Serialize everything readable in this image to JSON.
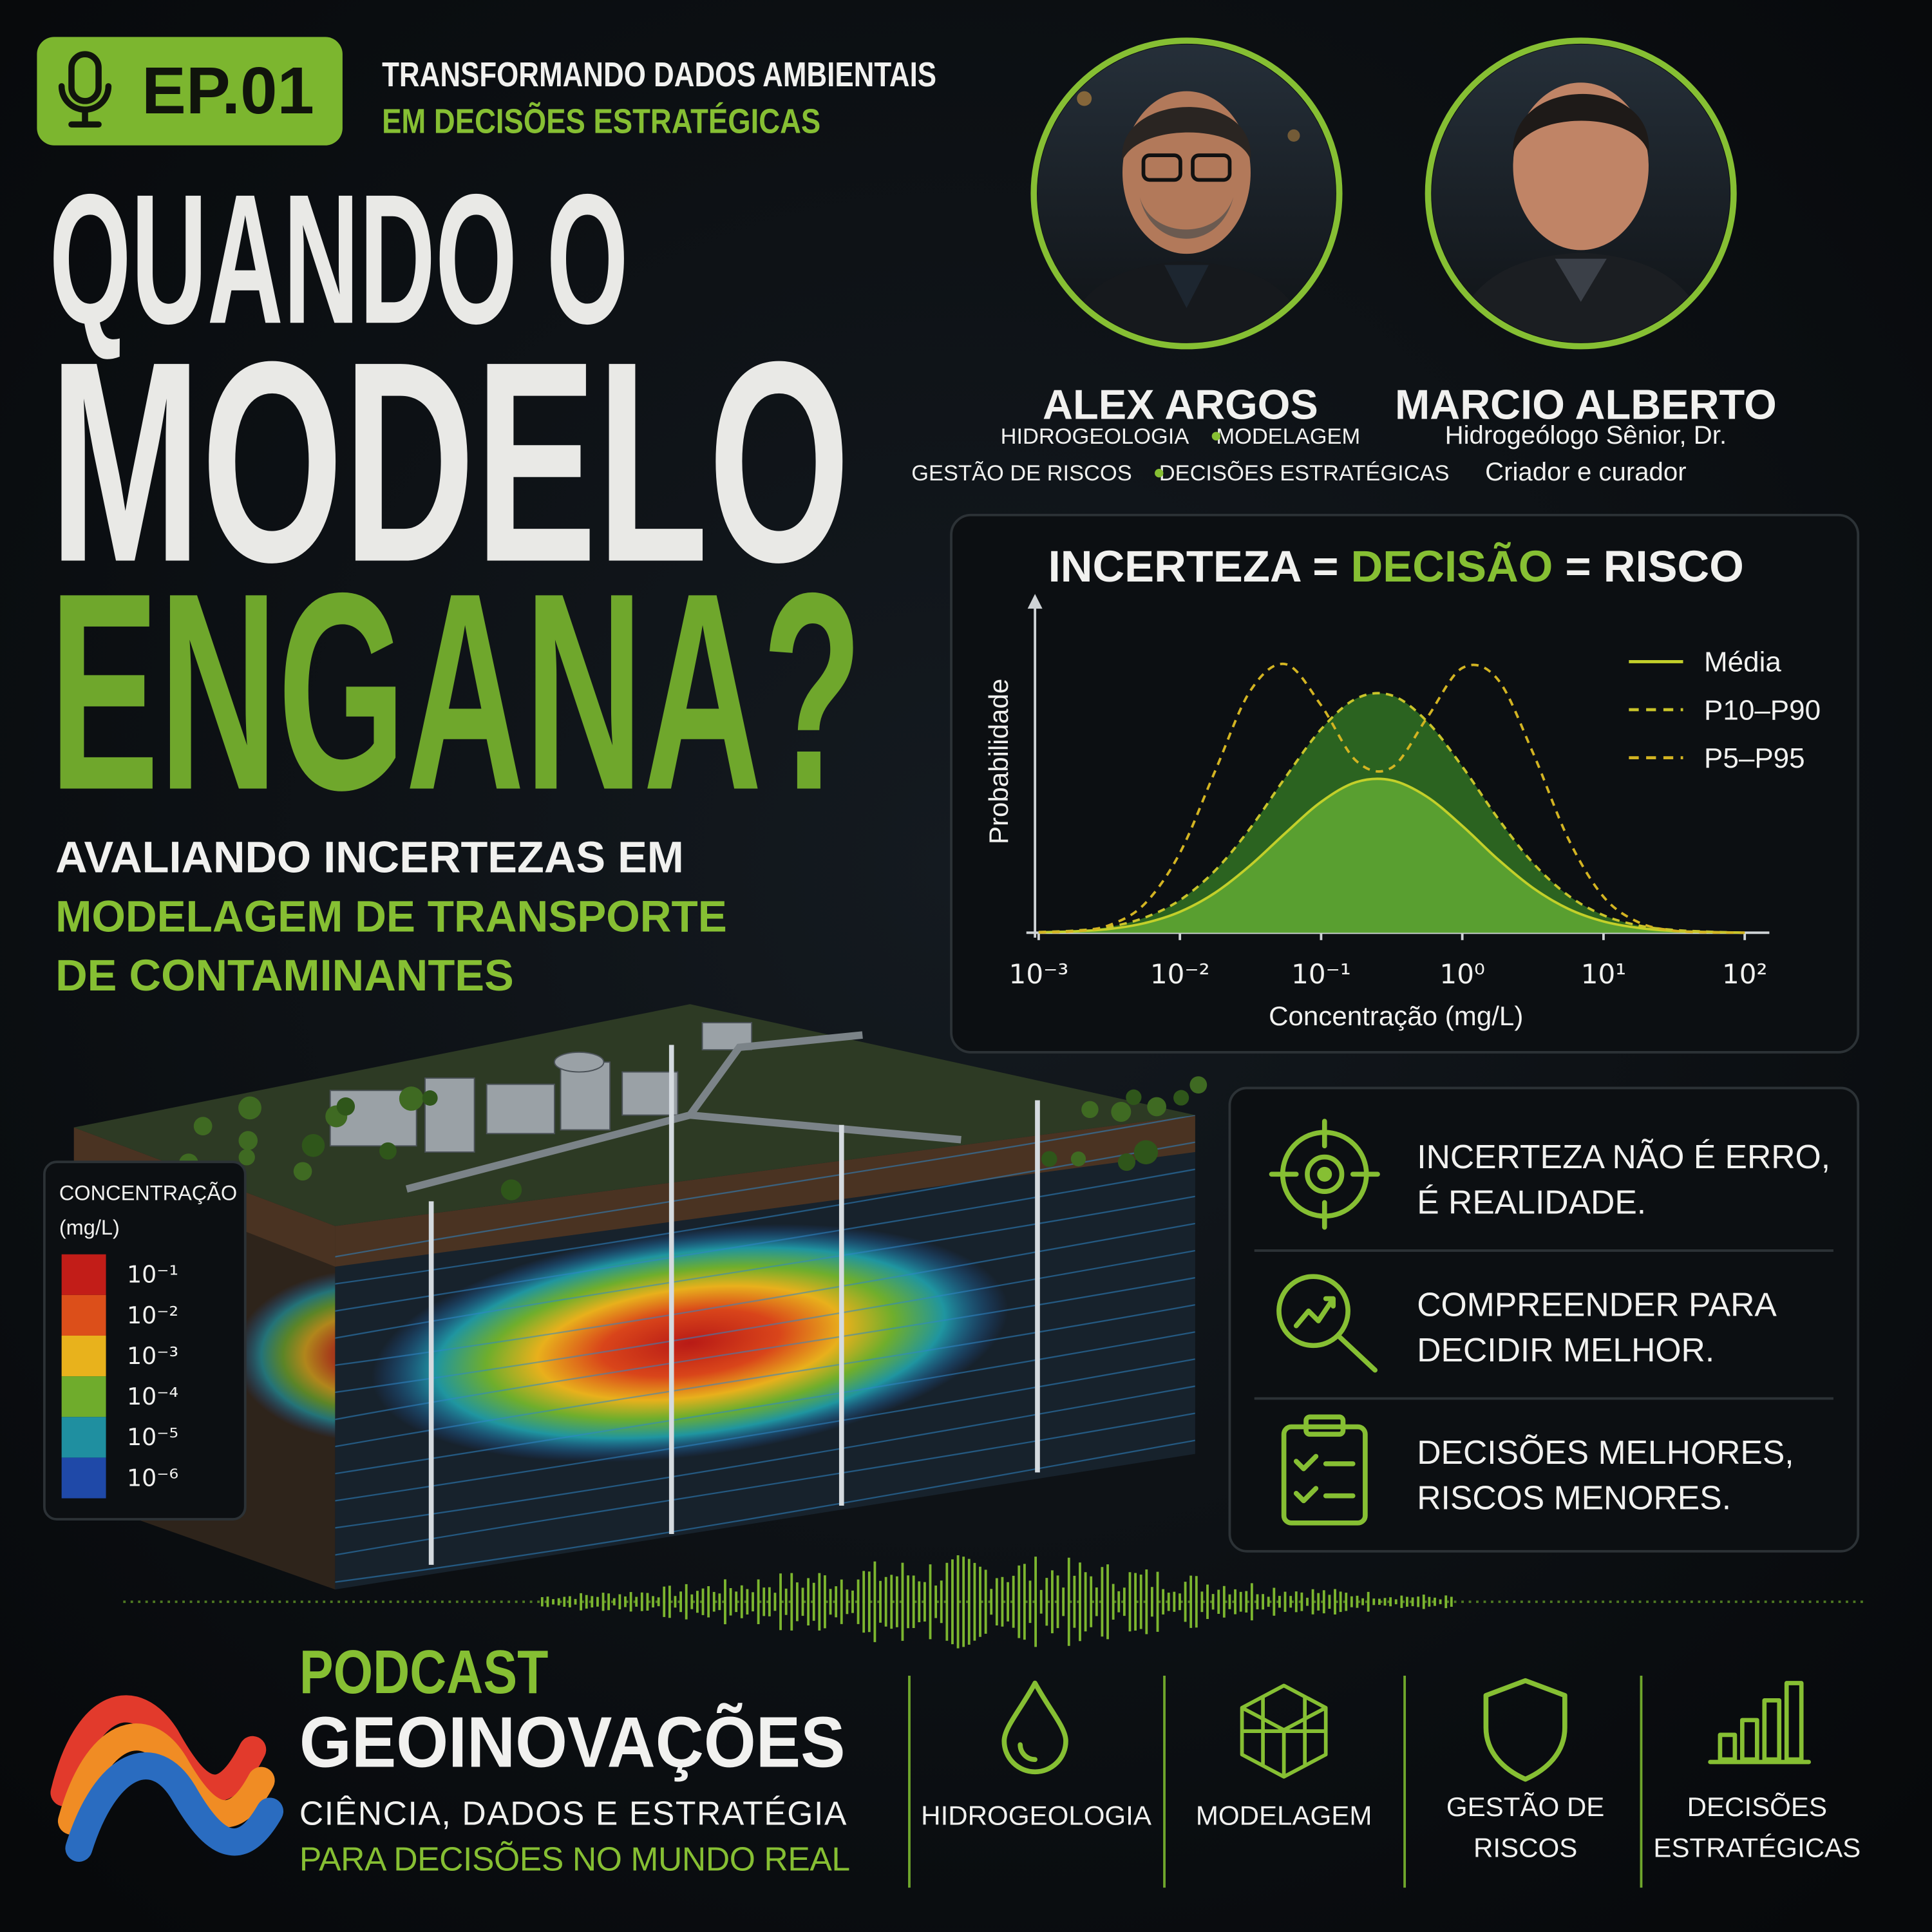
{
  "episode": {
    "badge": "EP.01",
    "tagline": [
      "TRANSFORMANDO DADOS AMBIENTAIS",
      "EM DECISÕES ESTRATÉGICAS"
    ]
  },
  "headline": [
    "QUANDO O",
    "MODELO",
    "ENGANA?"
  ],
  "subtitle": [
    "AVALIANDO INCERTEZAS EM",
    "MODELAGEM DE TRANSPORTE",
    "DE CONTAMINANTES"
  ],
  "hosts": [
    {
      "name": "ALEX ARGOS",
      "roles": [
        [
          "HIDROGEOLOGIA",
          "MODELAGEM"
        ],
        [
          "GESTÃO DE RISCOS",
          "DECISÕES ESTRATÉGICAS"
        ]
      ]
    },
    {
      "name": "MARCIO ALBERTO",
      "roles": [
        [
          "Hidrogeólogo Sênior, Dr."
        ],
        [
          "Criador e curador"
        ]
      ]
    }
  ],
  "chart_data": {
    "type": "line",
    "title": [
      "INCERTEZA =",
      "DECISÃO",
      "= RISCO"
    ],
    "x_label": "Concentração (mg/L)",
    "y_label": "Probabilidade",
    "log_x": true,
    "xlim": [
      0.001,
      100
    ],
    "xticks": [
      {
        "value": 0.001,
        "label": "10⁻³"
      },
      {
        "value": 0.01,
        "label": "10⁻²"
      },
      {
        "value": 0.1,
        "label": "10⁻¹"
      },
      {
        "value": 1,
        "label": "10⁰"
      },
      {
        "value": 10,
        "label": "10¹"
      },
      {
        "value": 100,
        "label": "10²"
      }
    ],
    "ylim": [
      0,
      100
    ],
    "x": [
      0.001,
      0.00178,
      0.00316,
      0.00562,
      0.01,
      0.0178,
      0.0316,
      0.0562,
      0.1,
      0.178,
      0.316,
      0.562,
      1,
      1.78,
      3.16,
      5.62,
      10,
      17.8,
      31.6,
      56.2,
      100
    ],
    "series": [
      {
        "name": "Média",
        "color": "#c3d02a",
        "fill": "#5ea532",
        "style": "solid",
        "values": [
          0.1,
          0.4,
          1.1,
          2.8,
          6.1,
          11.7,
          19.7,
          29.2,
          38.2,
          44.0,
          44.5,
          39.7,
          31.2,
          21.5,
          13.1,
          7.0,
          3.3,
          1.4,
          0.5,
          0.2,
          0.0
        ]
      },
      {
        "name": "P10–P90",
        "color": "#c9c42a",
        "fill": "#2f6d22",
        "style": "dashed",
        "values": [
          0.2,
          0.6,
          1.7,
          4.4,
          9.5,
          18.2,
          30.6,
          45.5,
          59.4,
          68.4,
          69.3,
          61.7,
          48.5,
          33.5,
          20.4,
          10.9,
          5.1,
          2.1,
          0.8,
          0.3,
          0.0
        ]
      },
      {
        "name": "P5–P95",
        "color": "#d3b422",
        "style": "dashed",
        "values": [
          0.1,
          0.4,
          2.2,
          8.4,
          23.3,
          47.3,
          70.7,
          78.4,
          66.4,
          50.1,
          48.2,
          62.7,
          77.3,
          74.0,
          52.6,
          27.5,
          10.5,
          3.0,
          0.6,
          0.1,
          0.0
        ]
      }
    ]
  },
  "colorbar": {
    "title": [
      "CONCENTRAÇÃO",
      "(mg/L)"
    ],
    "items": [
      {
        "label": "10⁻¹",
        "color": "#c21d18"
      },
      {
        "label": "10⁻²",
        "color": "#dc4f1a"
      },
      {
        "label": "10⁻³",
        "color": "#e8b21c"
      },
      {
        "label": "10⁻⁴",
        "color": "#6fac2c"
      },
      {
        "label": "10⁻⁵",
        "color": "#1f8fa0"
      },
      {
        "label": "10⁻⁶",
        "color": "#1f49a8"
      }
    ]
  },
  "key_points": [
    [
      "INCERTEZA NÃO É ERRO,",
      "É REALIDADE."
    ],
    [
      "COMPREENDER PARA",
      "DECIDIR MELHOR."
    ],
    [
      "DECISÕES MELHORES,",
      "RISCOS MENORES."
    ]
  ],
  "brand": {
    "kicker": "PODCAST",
    "name": "GEOINOVAÇÕES",
    "tagline": [
      "CIÊNCIA, DADOS E ESTRATÉGIA",
      "PARA DECISÕES NO MUNDO REAL"
    ]
  },
  "topics": [
    [
      "HIDROGEOLOGIA"
    ],
    [
      "MODELAGEM"
    ],
    [
      "GESTÃO DE",
      "RISCOS"
    ],
    [
      "DECISÕES",
      "ESTRATÉGICAS"
    ]
  ]
}
